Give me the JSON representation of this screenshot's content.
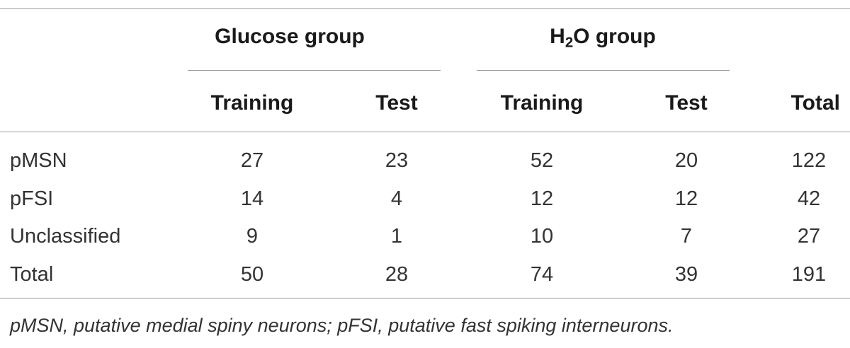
{
  "table": {
    "group_headers": {
      "glucose": "Glucose group",
      "h2o_prefix": "H",
      "h2o_subscript": "2",
      "h2o_suffix": "O group"
    },
    "column_headers": [
      "Training",
      "Test",
      "Training",
      "Test",
      "Total"
    ],
    "rows": [
      {
        "label": "pMSN",
        "values": [
          "27",
          "23",
          "52",
          "20",
          "122"
        ]
      },
      {
        "label": "pFSI",
        "values": [
          "14",
          "4",
          "12",
          "12",
          "42"
        ]
      },
      {
        "label": "Unclassified",
        "values": [
          "9",
          "1",
          "10",
          "7",
          "27"
        ]
      },
      {
        "label": "Total",
        "values": [
          "50",
          "28",
          "74",
          "39",
          "191"
        ]
      }
    ],
    "footnote": "pMSN, putative medial spiny neurons; pFSI, putative fast spiking interneurons."
  }
}
